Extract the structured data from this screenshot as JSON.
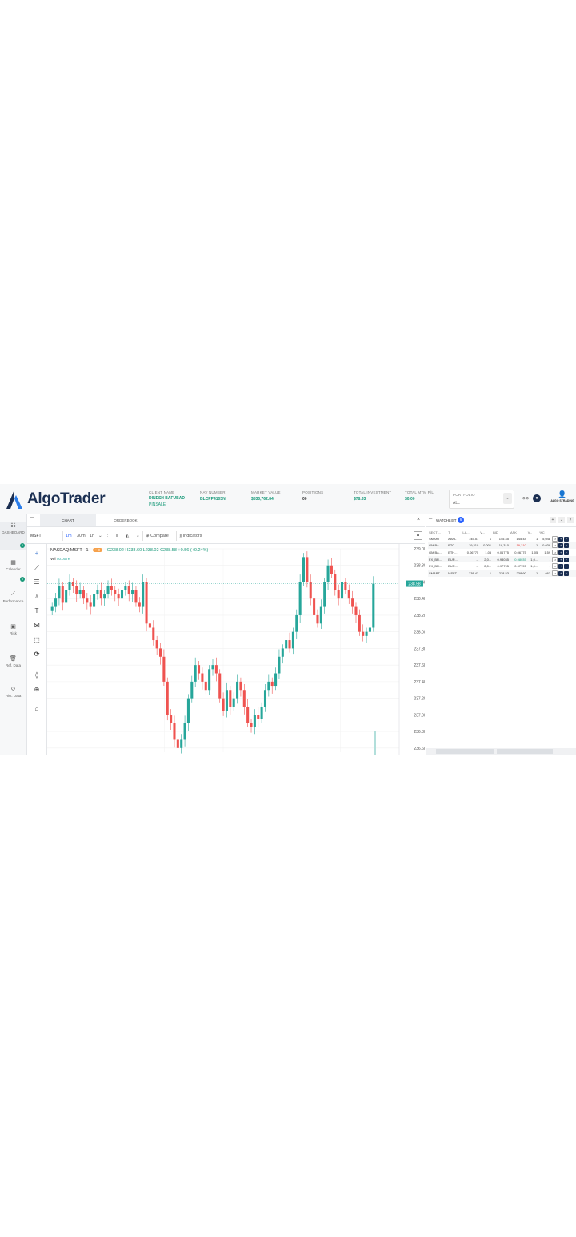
{
  "app": {
    "brand": "AlgoTrader",
    "accent": "#1b2f52",
    "positive_color": "#1a9a7a",
    "negative_color": "#e53935"
  },
  "header": {
    "client_name_label": "CLIENT NAME",
    "client_name": "DINESH BAFUBAD",
    "client_type": "PINSALE",
    "nav_number_label": "NAV NUMBER",
    "nav_number": "BLCPP4103N",
    "market_value_label": "MARKET VALUE",
    "market_value": "$530,762.84",
    "positions_label": "POSITIONS",
    "positions": "00",
    "total_investment_label": "TOTAL INVESTMENT",
    "total_investment": "$78.33",
    "total_mtm_label": "TOTAL MTM P/L",
    "total_mtm": "$0.00",
    "portfolio_label": "PORTFOLIO",
    "portfolio_value": "ALL",
    "user_name": "ALGO STRADING"
  },
  "sidenav": [
    {
      "icon": "grid-icon",
      "glyph": "☷",
      "label": "DASHBOARD",
      "badge": "0"
    },
    {
      "icon": "calendar-icon",
      "glyph": "▦",
      "label": "Calendar",
      "badge": "0"
    },
    {
      "icon": "chart-line-icon",
      "glyph": "⟋",
      "label": "Performance",
      "badge": ""
    },
    {
      "icon": "briefcase-icon",
      "glyph": "▣",
      "label": "Risk",
      "badge": ""
    },
    {
      "icon": "trash-icon",
      "glyph": "🗑",
      "label": "Ref. Data",
      "badge": ""
    },
    {
      "icon": "history-icon",
      "glyph": "↺",
      "label": "Hist. Data",
      "badge": ""
    }
  ],
  "tabs": [
    {
      "label": "CHART",
      "active": true
    },
    {
      "label": "ORDERBOOK",
      "active": false
    }
  ],
  "toolbar": {
    "symbol": "MSFT",
    "intervals": [
      "1m",
      "30m",
      "1h"
    ],
    "compare": "Compare",
    "indicators": "Indicators"
  },
  "chart": {
    "legend_symbol": "NASDAQ:MSFT · 1",
    "legend_pill": "• D",
    "legend_ohlc": "O238.02 H238.60 L238.02 C238.58 +0.56 (+0.24%)",
    "vol_label": "Vol",
    "vol_value": "50.007K",
    "last_price_label": "238.58"
  },
  "chart_data": {
    "type": "candlestick",
    "y_ticks": [
      "239.00",
      "238.80",
      "238.60",
      "238.40",
      "238.20",
      "238.00",
      "237.80",
      "237.60",
      "237.40",
      "237.20",
      "237.00",
      "236.80",
      "236.60"
    ],
    "ylim": [
      236.55,
      239.0
    ],
    "last_price": 238.58,
    "close": [
      238.3,
      238.4,
      238.55,
      238.35,
      238.5,
      238.6,
      238.55,
      238.45,
      238.5,
      238.4,
      238.35,
      238.3,
      238.45,
      238.5,
      238.4,
      238.45,
      238.55,
      238.5,
      238.45,
      238.4,
      238.5,
      238.55,
      238.45,
      238.5,
      238.35,
      238.3,
      238.6,
      238.1,
      238.05,
      237.9,
      237.8,
      237.7,
      237.4,
      237.0,
      236.9,
      236.7,
      236.6,
      236.7,
      236.9,
      237.2,
      237.4,
      237.6,
      237.5,
      237.4,
      237.3,
      237.55,
      237.6,
      237.5,
      237.2,
      237.05,
      237.3,
      237.1,
      237.2,
      237.4,
      237.3,
      237.1,
      236.9,
      236.85,
      237.0,
      236.95,
      237.1,
      237.3,
      237.4,
      237.35,
      237.5,
      237.7,
      237.8,
      237.9,
      237.8,
      238.0,
      238.2,
      238.6,
      238.9,
      238.6,
      238.4,
      238.2,
      238.1,
      238.3,
      238.6,
      238.8,
      238.7,
      238.5,
      238.4,
      238.6,
      238.5,
      238.4,
      238.3,
      238.2,
      238.0,
      237.95,
      238.0,
      238.05,
      238.58
    ]
  },
  "watchlist": {
    "title": "WATCHLIST",
    "count": "6",
    "columns": [
      "SECTI...",
      "T",
      "LA...",
      "V...",
      "BID",
      "ASK",
      "V...",
      "%C"
    ],
    "rows": [
      {
        "sect": "SMART",
        "sym": "AAPL",
        "last": "145.51",
        "vol": "1",
        "bid": "145.45",
        "ask": "145.44",
        "av": "1",
        "chg": "5,048",
        "dir": "neutral"
      },
      {
        "sect": "GM Ba...",
        "sym": "BTC...",
        "last": "19,310",
        "vol": "0.001",
        "bid": "19,310",
        "ask": "19,210",
        "av": "1",
        "chg": "0.038",
        "dir": "neg"
      },
      {
        "sect": "GM Ba...",
        "sym": "ETH...",
        "last": "0.06775",
        "vol": "1.05",
        "bid": "0.06775",
        "ask": "0.06775",
        "av": "1.05",
        "chg": "1.59",
        "dir": "neutral"
      },
      {
        "sect": "FX_BR...",
        "sym": "EUR...",
        "last": "--",
        "vol": "2,0...",
        "bid": "0.98035",
        "ask": "0.98035",
        "av": "1,0...",
        "chg": "-",
        "dir": "pos"
      },
      {
        "sect": "FX_BR...",
        "sym": "EUR...",
        "last": "--",
        "vol": "2,0...",
        "bid": "0.97795",
        "ask": "0.97795",
        "av": "1,0...",
        "chg": "-",
        "dir": "neutral"
      },
      {
        "sect": "SMART",
        "sym": "MSFT",
        "last": "238.43",
        "vol": "1",
        "bid": "238.53",
        "ask": "238.60",
        "av": "1",
        "chg": "663",
        "dir": "neutral"
      }
    ]
  }
}
